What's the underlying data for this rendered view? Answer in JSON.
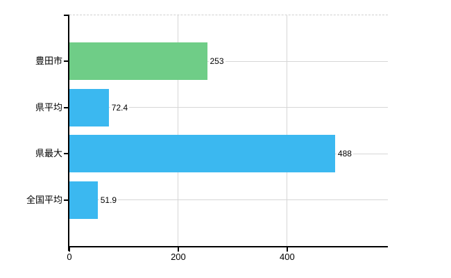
{
  "chart_data": {
    "type": "bar",
    "orientation": "horizontal",
    "title": "",
    "categories": [
      "豊田市",
      "県平均",
      "県最大",
      "全国平均"
    ],
    "values": [
      253,
      72.4,
      488,
      51.9
    ],
    "value_labels": [
      "253",
      "72.4",
      "488",
      "51.9"
    ],
    "bar_colors": [
      "#6fcd87",
      "#3bb8f0",
      "#3bb8f0",
      "#3bb8f0"
    ],
    "xlim": [
      0,
      585
    ],
    "x_ticks": [
      0,
      200,
      400
    ],
    "x_tick_labels": [
      "0",
      "200",
      "400"
    ],
    "grid": true,
    "legend": false,
    "gridline_color": "#d6d6d6",
    "axis_color": "#000000",
    "top_border_style": "dashed",
    "accent_green": "#6fcd87",
    "accent_blue": "#3bb8f0"
  }
}
